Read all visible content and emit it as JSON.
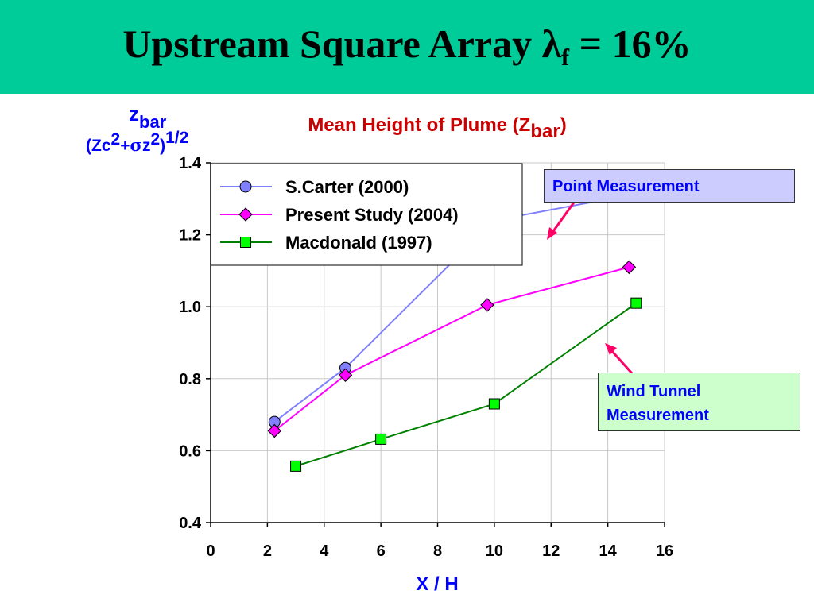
{
  "slide": {
    "title_main": "Upstream Square Array ",
    "title_lambda": "λ",
    "title_lambda_sub": "f",
    "title_rest": " = 16%"
  },
  "y_label": {
    "line1_main": "z",
    "line1_sub": "bar",
    "line2_open": "(Zc",
    "line2_sup1": "2",
    "line2_plus": "+",
    "line2_sigma": "σ",
    "line2_z": "z",
    "line2_sup2": "2",
    "line2_close": ")",
    "line2_sup3": "1/2"
  },
  "chart_title": {
    "main": "Mean Height of Plume (Z",
    "sub": "bar",
    "close": ")"
  },
  "callouts": {
    "point": "Point Measurement",
    "wind_line1": "Wind Tunnel",
    "wind_line2": "Measurement"
  },
  "chart_data": {
    "type": "line",
    "xlabel": "X / H",
    "xlim": [
      0,
      16
    ],
    "ylim": [
      0.4,
      1.4
    ],
    "xticks": [
      0,
      2,
      4,
      6,
      8,
      10,
      12,
      14,
      16
    ],
    "yticks": [
      0.4,
      0.6,
      0.8,
      1.0,
      1.2,
      1.4
    ],
    "ytick_labels": [
      "0.4",
      "0.6",
      "0.8",
      "1.0",
      "1.2",
      "1.4"
    ],
    "grid": true,
    "legend_position": "top-left",
    "series": [
      {
        "name": "S.Carter (2000)",
        "marker": "circle",
        "color": "#8080ff",
        "fill": "#8080ff",
        "x": [
          2.25,
          4.75,
          10.0,
          14.75
        ],
        "y": [
          0.68,
          0.83,
          1.24,
          1.31
        ]
      },
      {
        "name": "Present Study (2004)",
        "marker": "diamond",
        "color": "#ff00ff",
        "fill": "#ff00ff",
        "x": [
          2.25,
          4.75,
          9.75,
          14.75
        ],
        "y": [
          0.655,
          0.81,
          1.005,
          1.11
        ]
      },
      {
        "name": "Macdonald (1997)",
        "marker": "square",
        "color": "#008000",
        "fill": "#00ff00",
        "x": [
          3.0,
          6.0,
          10.0,
          15.0
        ],
        "y": [
          0.557,
          0.632,
          0.73,
          1.01
        ]
      }
    ],
    "colors": {
      "title_band": "#00cc99",
      "axis_label": "#0000ff",
      "chart_title": "#cc0000",
      "arrow": "#ff0066",
      "point_box": "#ccccff",
      "wind_box": "#ccffcc"
    }
  }
}
